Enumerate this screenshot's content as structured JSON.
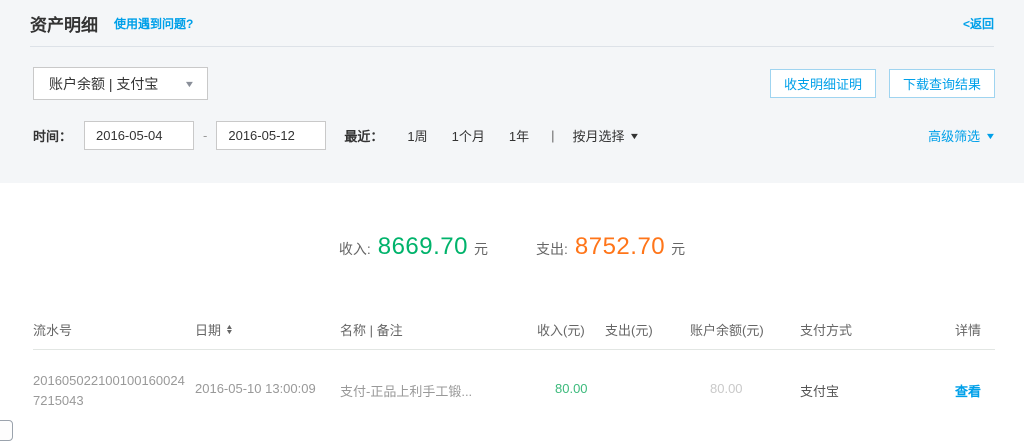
{
  "header": {
    "title": "资产明细",
    "help_link": "使用遇到问题?",
    "back_link": "<返回"
  },
  "filters": {
    "account_select": "账户余额 | 支付宝",
    "statement_button": "收支明细证明",
    "download_button": "下载查询结果",
    "time_label": "时间：",
    "date_from": "2016-05-04",
    "date_separator": "-",
    "date_to": "2016-05-12",
    "recent_label": "最近：",
    "recent_week": "1周",
    "recent_month": "1个月",
    "recent_year": "1年",
    "divider": "|",
    "month_select": "按月选择",
    "advanced_filter": "高级筛选"
  },
  "summary": {
    "income_label": "收入:",
    "income_value": "8669.70",
    "income_unit": "元",
    "expense_label": "支出:",
    "expense_value": "8752.70",
    "expense_unit": "元"
  },
  "table": {
    "columns": {
      "serial": "流水号",
      "date": "日期",
      "name": "名称 | 备注",
      "income": "收入(元)",
      "expense": "支出(元)",
      "balance": "账户余额(元)",
      "payment": "支付方式",
      "detail": "详情"
    },
    "rows": [
      {
        "serial": "2016050221001001600247215043",
        "date": "2016-05-10 13:00:09",
        "name": "支付-正品上利手工锻...",
        "income": "80.00",
        "expense": "",
        "balance": "80.00",
        "payment": "支付宝",
        "detail_link": "查看"
      }
    ]
  },
  "icons": {
    "caret_down": "▼",
    "sort_up": "▲",
    "sort_down": "▼"
  },
  "colors": {
    "accent_blue": "#00a0e9",
    "income_green": "#00b36b",
    "expense_orange": "#ff7519"
  }
}
